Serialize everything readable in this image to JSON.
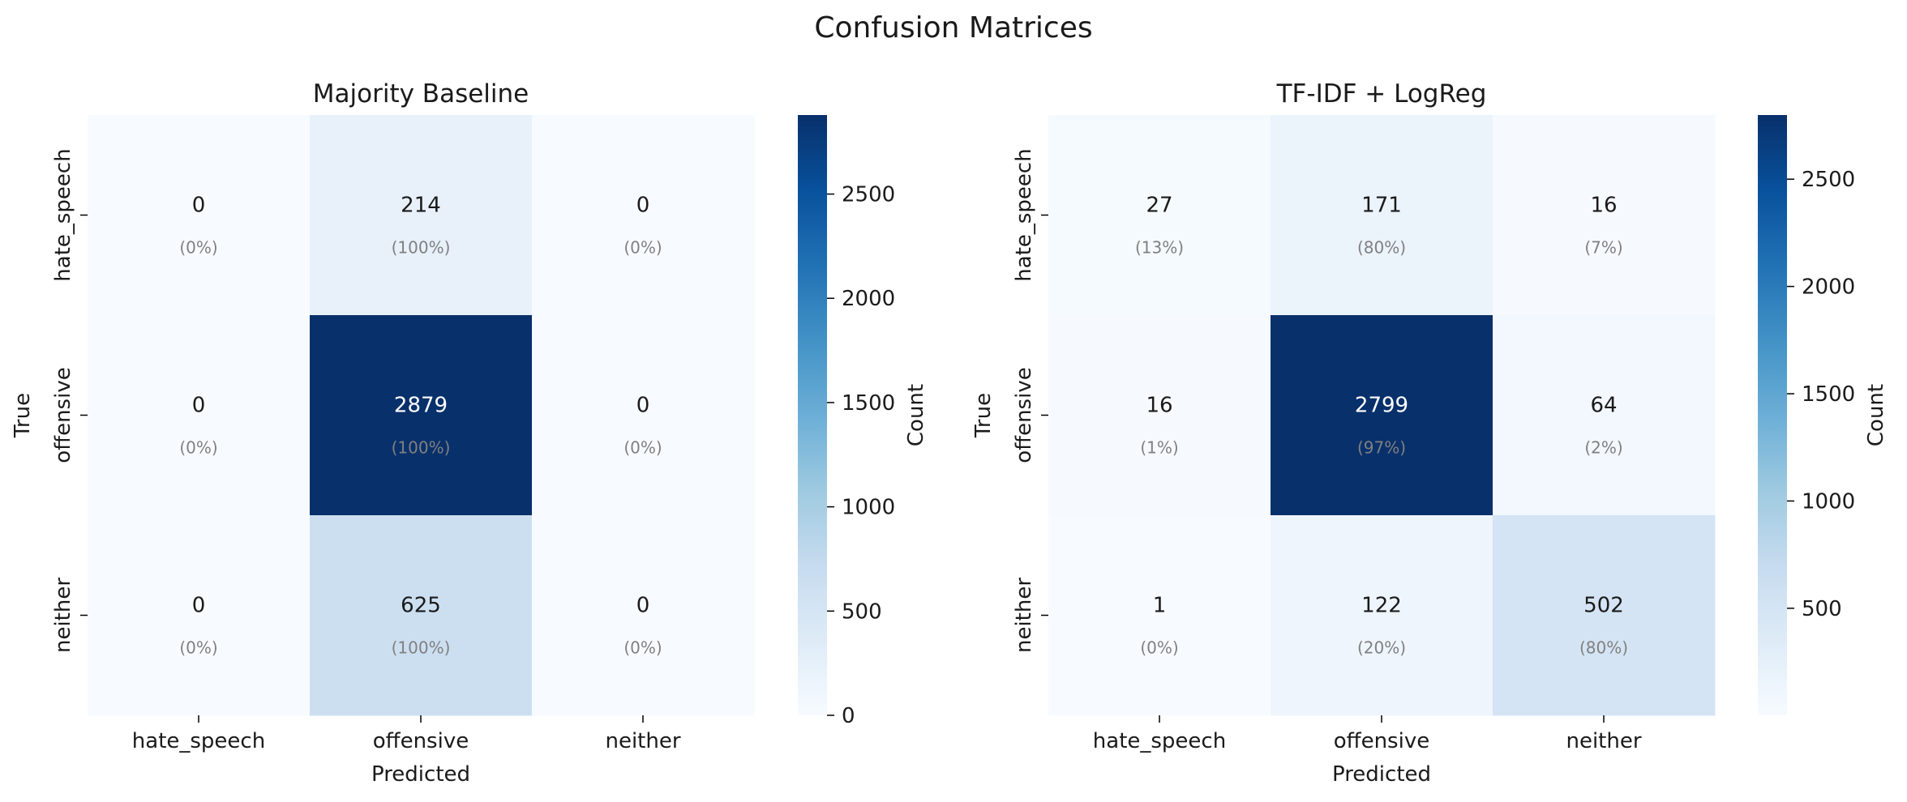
{
  "figure": {
    "title": "Confusion Matrices"
  },
  "colors": {
    "cmap_light": "#f7fbff",
    "cmap_mid": "#6baed6",
    "cmap_dark": "#08306b",
    "text_dark": "#1a1a1a",
    "text_light": "#ffffff",
    "pct_text": "#808080"
  },
  "chart_data": [
    {
      "type": "heatmap",
      "title": "Majority Baseline",
      "xlabel": "Predicted",
      "ylabel": "True",
      "x_labels": [
        "hate_speech",
        "offensive",
        "neither"
      ],
      "y_labels": [
        "hate_speech",
        "offensive",
        "neither"
      ],
      "values": [
        [
          0,
          214,
          0
        ],
        [
          0,
          2879,
          0
        ],
        [
          0,
          625,
          0
        ]
      ],
      "percent_labels": [
        [
          "(0%)",
          "(100%)",
          "(0%)"
        ],
        [
          "(0%)",
          "(100%)",
          "(0%)"
        ],
        [
          "(0%)",
          "(100%)",
          "(0%)"
        ]
      ],
      "colorbar": {
        "label": "Count",
        "range": [
          0,
          2879
        ],
        "ticks": [
          0,
          500,
          1000,
          1500,
          2000,
          2500
        ]
      }
    },
    {
      "type": "heatmap",
      "title": "TF-IDF + LogReg",
      "xlabel": "Predicted",
      "ylabel": "True",
      "x_labels": [
        "hate_speech",
        "offensive",
        "neither"
      ],
      "y_labels": [
        "hate_speech",
        "offensive",
        "neither"
      ],
      "values": [
        [
          27,
          171,
          16
        ],
        [
          16,
          2799,
          64
        ],
        [
          1,
          122,
          502
        ]
      ],
      "percent_labels": [
        [
          "(13%)",
          "(80%)",
          "(7%)"
        ],
        [
          "(1%)",
          "(97%)",
          "(2%)"
        ],
        [
          "(0%)",
          "(20%)",
          "(80%)"
        ]
      ],
      "colorbar": {
        "label": "Count",
        "range": [
          1,
          2799
        ],
        "ticks": [
          500,
          1000,
          1500,
          2000,
          2500
        ]
      }
    }
  ]
}
